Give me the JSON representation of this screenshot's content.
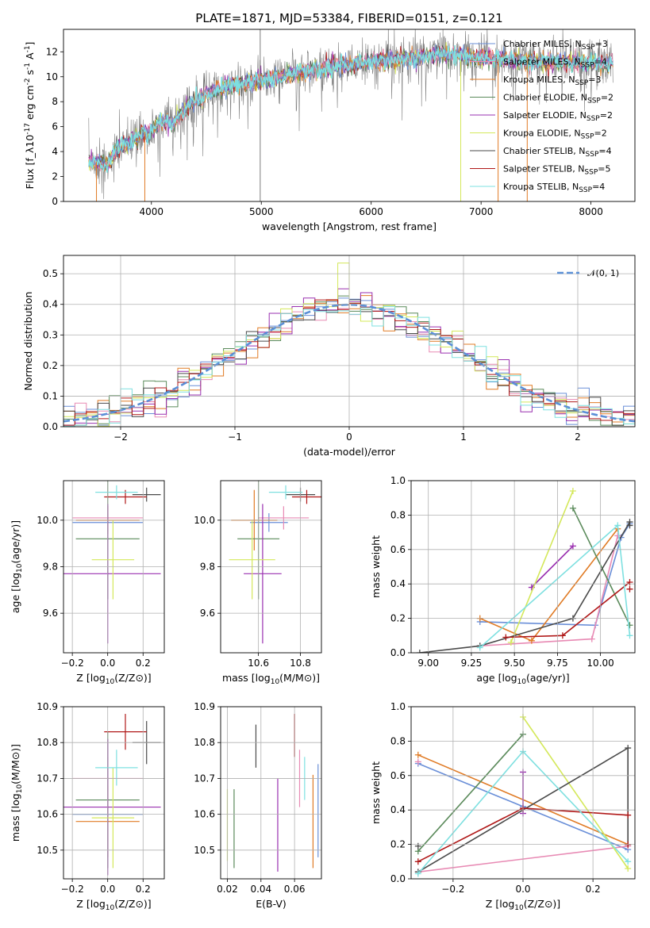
{
  "figure": {
    "title": "PLATE=1871, MJD=53384, FIBERID=0151, z=0.121"
  },
  "models": [
    {
      "name": "Chabrier MILES, N_{SSP}=3",
      "color": "#6a8fd8"
    },
    {
      "name": "Salpeter MILES, N_{SSP}=4",
      "color": "#e88ab4"
    },
    {
      "name": "Kroupa MILES, N_{SSP}=3",
      "color": "#e07b25"
    },
    {
      "name": "Chabrier ELODIE, N_{SSP}=2",
      "color": "#5a8a5a"
    },
    {
      "name": "Salpeter ELODIE, N_{SSP}=2",
      "color": "#9a30b0"
    },
    {
      "name": "Kroupa ELODIE, N_{SSP}=2",
      "color": "#d4e85a"
    },
    {
      "name": "Chabrier STELIB, N_{SSP}=4",
      "color": "#4a4a4a"
    },
    {
      "name": "Salpeter STELIB, N_{SSP}=5",
      "color": "#b01818"
    },
    {
      "name": "Kroupa STELIB, N_{SSP}=4",
      "color": "#7ee0e0"
    }
  ],
  "chart_data": [
    {
      "id": "spectrum",
      "type": "line",
      "xlabel": "wavelength [Angstrom, rest frame]",
      "ylabel": "Flux [f_λ10^{-17} erg cm^{-2} s^{-1} A^{-1}]",
      "xlim": [
        3200,
        8400
      ],
      "ylim": [
        0,
        13.8
      ],
      "xticks": [
        4000,
        5000,
        6000,
        7000,
        8000
      ],
      "yticks": [
        0,
        2,
        4,
        6,
        8,
        10,
        12
      ],
      "x_range": [
        3430,
        8200
      ],
      "continuum": [
        [
          3430,
          3.2
        ],
        [
          3600,
          3.0
        ],
        [
          3700,
          4.4
        ],
        [
          3800,
          4.6
        ],
        [
          3900,
          5.4
        ],
        [
          4000,
          5.7
        ],
        [
          4100,
          6.5
        ],
        [
          4200,
          6.2
        ],
        [
          4300,
          7.4
        ],
        [
          4400,
          8.0
        ],
        [
          4500,
          8.6
        ],
        [
          4700,
          9.3
        ],
        [
          4900,
          9.6
        ],
        [
          5100,
          9.9
        ],
        [
          5300,
          10.3
        ],
        [
          5500,
          10.6
        ],
        [
          5800,
          11.0
        ],
        [
          6100,
          11.3
        ],
        [
          6400,
          11.6
        ],
        [
          6700,
          11.8
        ],
        [
          7000,
          11.5
        ],
        [
          7300,
          11.3
        ],
        [
          7600,
          11.2
        ],
        [
          7900,
          11.1
        ],
        [
          8200,
          11.0
        ]
      ],
      "grid": false,
      "legend_position": "right"
    },
    {
      "id": "residuals",
      "type": "step",
      "xlabel": "(data-model)/error",
      "ylabel": "Normed distribution",
      "xlim": [
        -2.5,
        2.5
      ],
      "ylim": [
        0,
        0.56
      ],
      "xticks": [
        -2,
        -1,
        0,
        1,
        2
      ],
      "xticklabels": [
        "−2",
        "−1",
        "0",
        "1",
        "2"
      ],
      "yticks": [
        0.0,
        0.1,
        0.2,
        0.3,
        0.4,
        0.5
      ],
      "reference_label": "𝒩(0, 1)",
      "reference_color": "#5b8fd6",
      "grid": true,
      "legend_position": "upper right"
    },
    {
      "id": "age-vs-Z",
      "type": "errorbar",
      "xlabel": "Z [log10(Z/Z⊙)]",
      "ylabel": "age  [log10(age/yr)]",
      "xlim": [
        -0.25,
        0.32
      ],
      "ylim": [
        9.43,
        10.17
      ],
      "xticks": [
        -0.2,
        0.0,
        0.2
      ],
      "xticklabels": [
        "−0.2",
        "0.0",
        "0.2"
      ],
      "yticks": [
        9.6,
        9.8,
        10.0
      ],
      "points": [
        {
          "m": 0,
          "x": 0.0,
          "y": 9.99,
          "xe": 0.2,
          "ye": 0.04
        },
        {
          "m": 1,
          "x": 0.0,
          "y": 10.01,
          "xe": 0.2,
          "ye": 0.05
        },
        {
          "m": 2,
          "x": 0.0,
          "y": 10.0,
          "xe": 0.18,
          "ye": 0.06
        },
        {
          "m": 3,
          "x": 0.0,
          "y": 9.92,
          "xe": 0.18,
          "ye": 0.26
        },
        {
          "m": 4,
          "x": 0.0,
          "y": 9.77,
          "xe": 0.3,
          "ye": 0.3
        },
        {
          "m": 5,
          "x": 0.03,
          "y": 9.83,
          "xe": 0.12,
          "ye": 0.17
        },
        {
          "m": 6,
          "x": 0.22,
          "y": 10.11,
          "xe": 0.08,
          "ye": 0.03
        },
        {
          "m": 7,
          "x": 0.1,
          "y": 10.1,
          "xe": 0.12,
          "ye": 0.03
        },
        {
          "m": 8,
          "x": 0.05,
          "y": 10.12,
          "xe": 0.12,
          "ye": 0.03
        }
      ]
    },
    {
      "id": "age-vs-mass",
      "type": "errorbar",
      "xlabel": "mass [log10(M/M⊙)]",
      "ylabel": "",
      "xlim": [
        10.42,
        10.9
      ],
      "ylim": [
        9.43,
        10.17
      ],
      "xticks": [
        10.6,
        10.8
      ],
      "xticklabels": [
        "10.6",
        "10.8"
      ],
      "yticks": [
        9.6,
        9.8,
        10.0
      ],
      "points": [
        {
          "m": 0,
          "x": 10.65,
          "y": 9.99,
          "xe": 0.09,
          "ye": 0.04
        },
        {
          "m": 1,
          "x": 10.72,
          "y": 10.01,
          "xe": 0.12,
          "ye": 0.05
        },
        {
          "m": 2,
          "x": 10.58,
          "y": 10.0,
          "xe": 0.11,
          "ye": 0.13
        },
        {
          "m": 3,
          "x": 10.6,
          "y": 9.92,
          "xe": 0.1,
          "ye": 0.26
        },
        {
          "m": 4,
          "x": 10.62,
          "y": 9.77,
          "xe": 0.09,
          "ye": 0.3
        },
        {
          "m": 5,
          "x": 10.57,
          "y": 9.83,
          "xe": 0.11,
          "ye": 0.17
        },
        {
          "m": 6,
          "x": 10.8,
          "y": 10.11,
          "xe": 0.07,
          "ye": 0.03
        },
        {
          "m": 7,
          "x": 10.83,
          "y": 10.1,
          "xe": 0.07,
          "ye": 0.03
        },
        {
          "m": 8,
          "x": 10.73,
          "y": 10.12,
          "xe": 0.08,
          "ye": 0.03
        }
      ]
    },
    {
      "id": "weight-vs-age",
      "type": "line",
      "xlabel": "age  [log10(age/yr)]",
      "ylabel": "mass weight",
      "xlim": [
        8.9,
        10.2
      ],
      "ylim": [
        0,
        1.0
      ],
      "xticks": [
        9.0,
        9.25,
        9.5,
        9.75,
        10.0
      ],
      "xticklabels": [
        "9.00",
        "9.25",
        "9.50",
        "9.75",
        "10.00"
      ],
      "yticks": [
        0.0,
        0.2,
        0.4,
        0.6,
        0.8,
        1.0
      ],
      "series": [
        {
          "m": 0,
          "points": [
            [
              9.3,
              0.18
            ],
            [
              9.97,
              0.16
            ],
            [
              10.12,
              0.67
            ],
            [
              10.17,
              0.75
            ]
          ]
        },
        {
          "m": 1,
          "points": [
            [
              9.3,
              0.04
            ],
            [
              9.95,
              0.08
            ],
            [
              10.1,
              0.68
            ]
          ]
        },
        {
          "m": 2,
          "points": [
            [
              9.3,
              0.2
            ],
            [
              9.6,
              0.07
            ],
            [
              10.1,
              0.72
            ]
          ]
        },
        {
          "m": 3,
          "points": [
            [
              9.84,
              0.84
            ],
            [
              10.17,
              0.16
            ]
          ]
        },
        {
          "m": 4,
          "points": [
            [
              9.6,
              0.38
            ],
            [
              9.84,
              0.62
            ]
          ]
        },
        {
          "m": 5,
          "points": [
            [
              9.48,
              0.06
            ],
            [
              9.84,
              0.94
            ]
          ]
        },
        {
          "m": 6,
          "points": [
            [
              8.95,
              0.0
            ],
            [
              9.3,
              0.04
            ],
            [
              9.84,
              0.2
            ],
            [
              10.17,
              0.76
            ]
          ]
        },
        {
          "m": 7,
          "points": [
            [
              9.45,
              0.09
            ],
            [
              9.78,
              0.1
            ],
            [
              10.17,
              0.41
            ]
          ]
        },
        {
          "m": 8,
          "points": [
            [
              9.3,
              0.03
            ],
            [
              10.1,
              0.74
            ],
            [
              10.17,
              0.1
            ]
          ]
        }
      ],
      "extra_markers": [
        {
          "m": 7,
          "x": 10.17,
          "y": 0.37
        },
        {
          "m": 6,
          "x": 10.17,
          "y": 0.74
        }
      ]
    },
    {
      "id": "mass-vs-Z",
      "type": "errorbar",
      "xlabel": "Z [log10(Z/Z⊙)]",
      "ylabel": "mass [log10(M/M⊙)]",
      "xlim": [
        -0.25,
        0.32
      ],
      "ylim": [
        10.42,
        10.9
      ],
      "xticks": [
        -0.2,
        0.0,
        0.2
      ],
      "xticklabels": [
        "−0.2",
        "0.0",
        "0.2"
      ],
      "yticks": [
        10.5,
        10.6,
        10.7,
        10.8,
        10.9
      ],
      "points": [
        {
          "m": 0,
          "x": 0.0,
          "y": 10.6,
          "xe": 0.2,
          "ye": 0.12
        },
        {
          "m": 1,
          "x": 0.0,
          "y": 10.7,
          "xe": 0.2,
          "ye": 0.06
        },
        {
          "m": 2,
          "x": 0.0,
          "y": 10.58,
          "xe": 0.18,
          "ye": 0.1
        },
        {
          "m": 3,
          "x": 0.0,
          "y": 10.64,
          "xe": 0.18,
          "ye": 0.19
        },
        {
          "m": 4,
          "x": 0.0,
          "y": 10.62,
          "xe": 0.3,
          "ye": 0.19
        },
        {
          "m": 5,
          "x": 0.03,
          "y": 10.59,
          "xe": 0.12,
          "ye": 0.14
        },
        {
          "m": 6,
          "x": 0.22,
          "y": 10.8,
          "xe": 0.08,
          "ye": 0.06
        },
        {
          "m": 7,
          "x": 0.1,
          "y": 10.83,
          "xe": 0.12,
          "ye": 0.05
        },
        {
          "m": 8,
          "x": 0.05,
          "y": 10.73,
          "xe": 0.12,
          "ye": 0.05
        }
      ]
    },
    {
      "id": "mass-vs-ebv",
      "type": "errorbar",
      "xlabel": "E(B-V)",
      "ylabel": "",
      "xlim": [
        0.016,
        0.076
      ],
      "ylim": [
        10.42,
        10.9
      ],
      "xticks": [
        0.02,
        0.04,
        0.06
      ],
      "xticklabels": [
        "0.02",
        "0.04",
        "0.06"
      ],
      "yticks": [
        10.5,
        10.6,
        10.7,
        10.8,
        10.9
      ],
      "points": [
        {
          "m": 0,
          "x": 0.074,
          "y": 10.61,
          "xe": 0,
          "ye": 0.13
        },
        {
          "m": 1,
          "x": 0.063,
          "y": 10.7,
          "xe": 0,
          "ye": 0.08
        },
        {
          "m": 2,
          "x": 0.071,
          "y": 10.58,
          "xe": 0,
          "ye": 0.13
        },
        {
          "m": 3,
          "x": 0.024,
          "y": 10.56,
          "xe": 0,
          "ye": 0.11
        },
        {
          "m": 4,
          "x": 0.05,
          "y": 10.57,
          "xe": 0,
          "ye": 0.13
        },
        {
          "m": 5,
          "x": 0.02,
          "y": 10.57,
          "xe": 0,
          "ye": 0.1
        },
        {
          "m": 6,
          "x": 0.037,
          "y": 10.79,
          "xe": 0,
          "ye": 0.06
        },
        {
          "m": 7,
          "x": 0.06,
          "y": 10.82,
          "xe": 0,
          "ye": 0.06
        },
        {
          "m": 8,
          "x": 0.066,
          "y": 10.7,
          "xe": 0,
          "ye": 0.06
        }
      ]
    },
    {
      "id": "weight-vs-Z",
      "type": "line",
      "xlabel": "Z [log10(Z/Z⊙)]",
      "ylabel": "mass weight",
      "xlim": [
        -0.32,
        0.32
      ],
      "ylim": [
        0,
        1.0
      ],
      "xticks": [
        -0.2,
        0.0,
        0.2
      ],
      "xticklabels": [
        "−0.2",
        "0.0",
        "0.2"
      ],
      "yticks": [
        0.0,
        0.2,
        0.4,
        0.6,
        0.8,
        1.0
      ],
      "series": [
        {
          "m": 0,
          "points": [
            [
              -0.3,
              0.67
            ],
            [
              0.0,
              0.42
            ],
            [
              0.3,
              0.17
            ]
          ]
        },
        {
          "m": 1,
          "points": [
            [
              -0.3,
              0.04
            ],
            [
              0.3,
              0.19
            ]
          ]
        },
        {
          "m": 2,
          "points": [
            [
              -0.3,
              0.72
            ],
            [
              0.3,
              0.2
            ]
          ]
        },
        {
          "m": 3,
          "points": [
            [
              -0.3,
              0.16
            ],
            [
              0.0,
              0.84
            ]
          ]
        },
        {
          "m": 4,
          "points": [
            [
              0.0,
              0.62
            ],
            [
              0.0,
              0.38
            ]
          ]
        },
        {
          "m": 5,
          "points": [
            [
              0.0,
              0.94
            ],
            [
              0.3,
              0.06
            ]
          ]
        },
        {
          "m": 6,
          "points": [
            [
              -0.3,
              0.04
            ],
            [
              0.3,
              0.76
            ],
            [
              0.3,
              0.2
            ]
          ]
        },
        {
          "m": 7,
          "points": [
            [
              -0.3,
              0.1
            ],
            [
              0.0,
              0.41
            ],
            [
              0.3,
              0.37
            ]
          ]
        },
        {
          "m": 8,
          "points": [
            [
              -0.3,
              0.03
            ],
            [
              0.0,
              0.74
            ],
            [
              0.3,
              0.1
            ]
          ]
        }
      ],
      "extra_markers": [
        {
          "m": 1,
          "x": -0.3,
          "y": 0.68
        },
        {
          "m": 6,
          "x": -0.3,
          "y": 0.19
        },
        {
          "m": 7,
          "x": 0.3,
          "y": 0.2
        }
      ]
    }
  ]
}
